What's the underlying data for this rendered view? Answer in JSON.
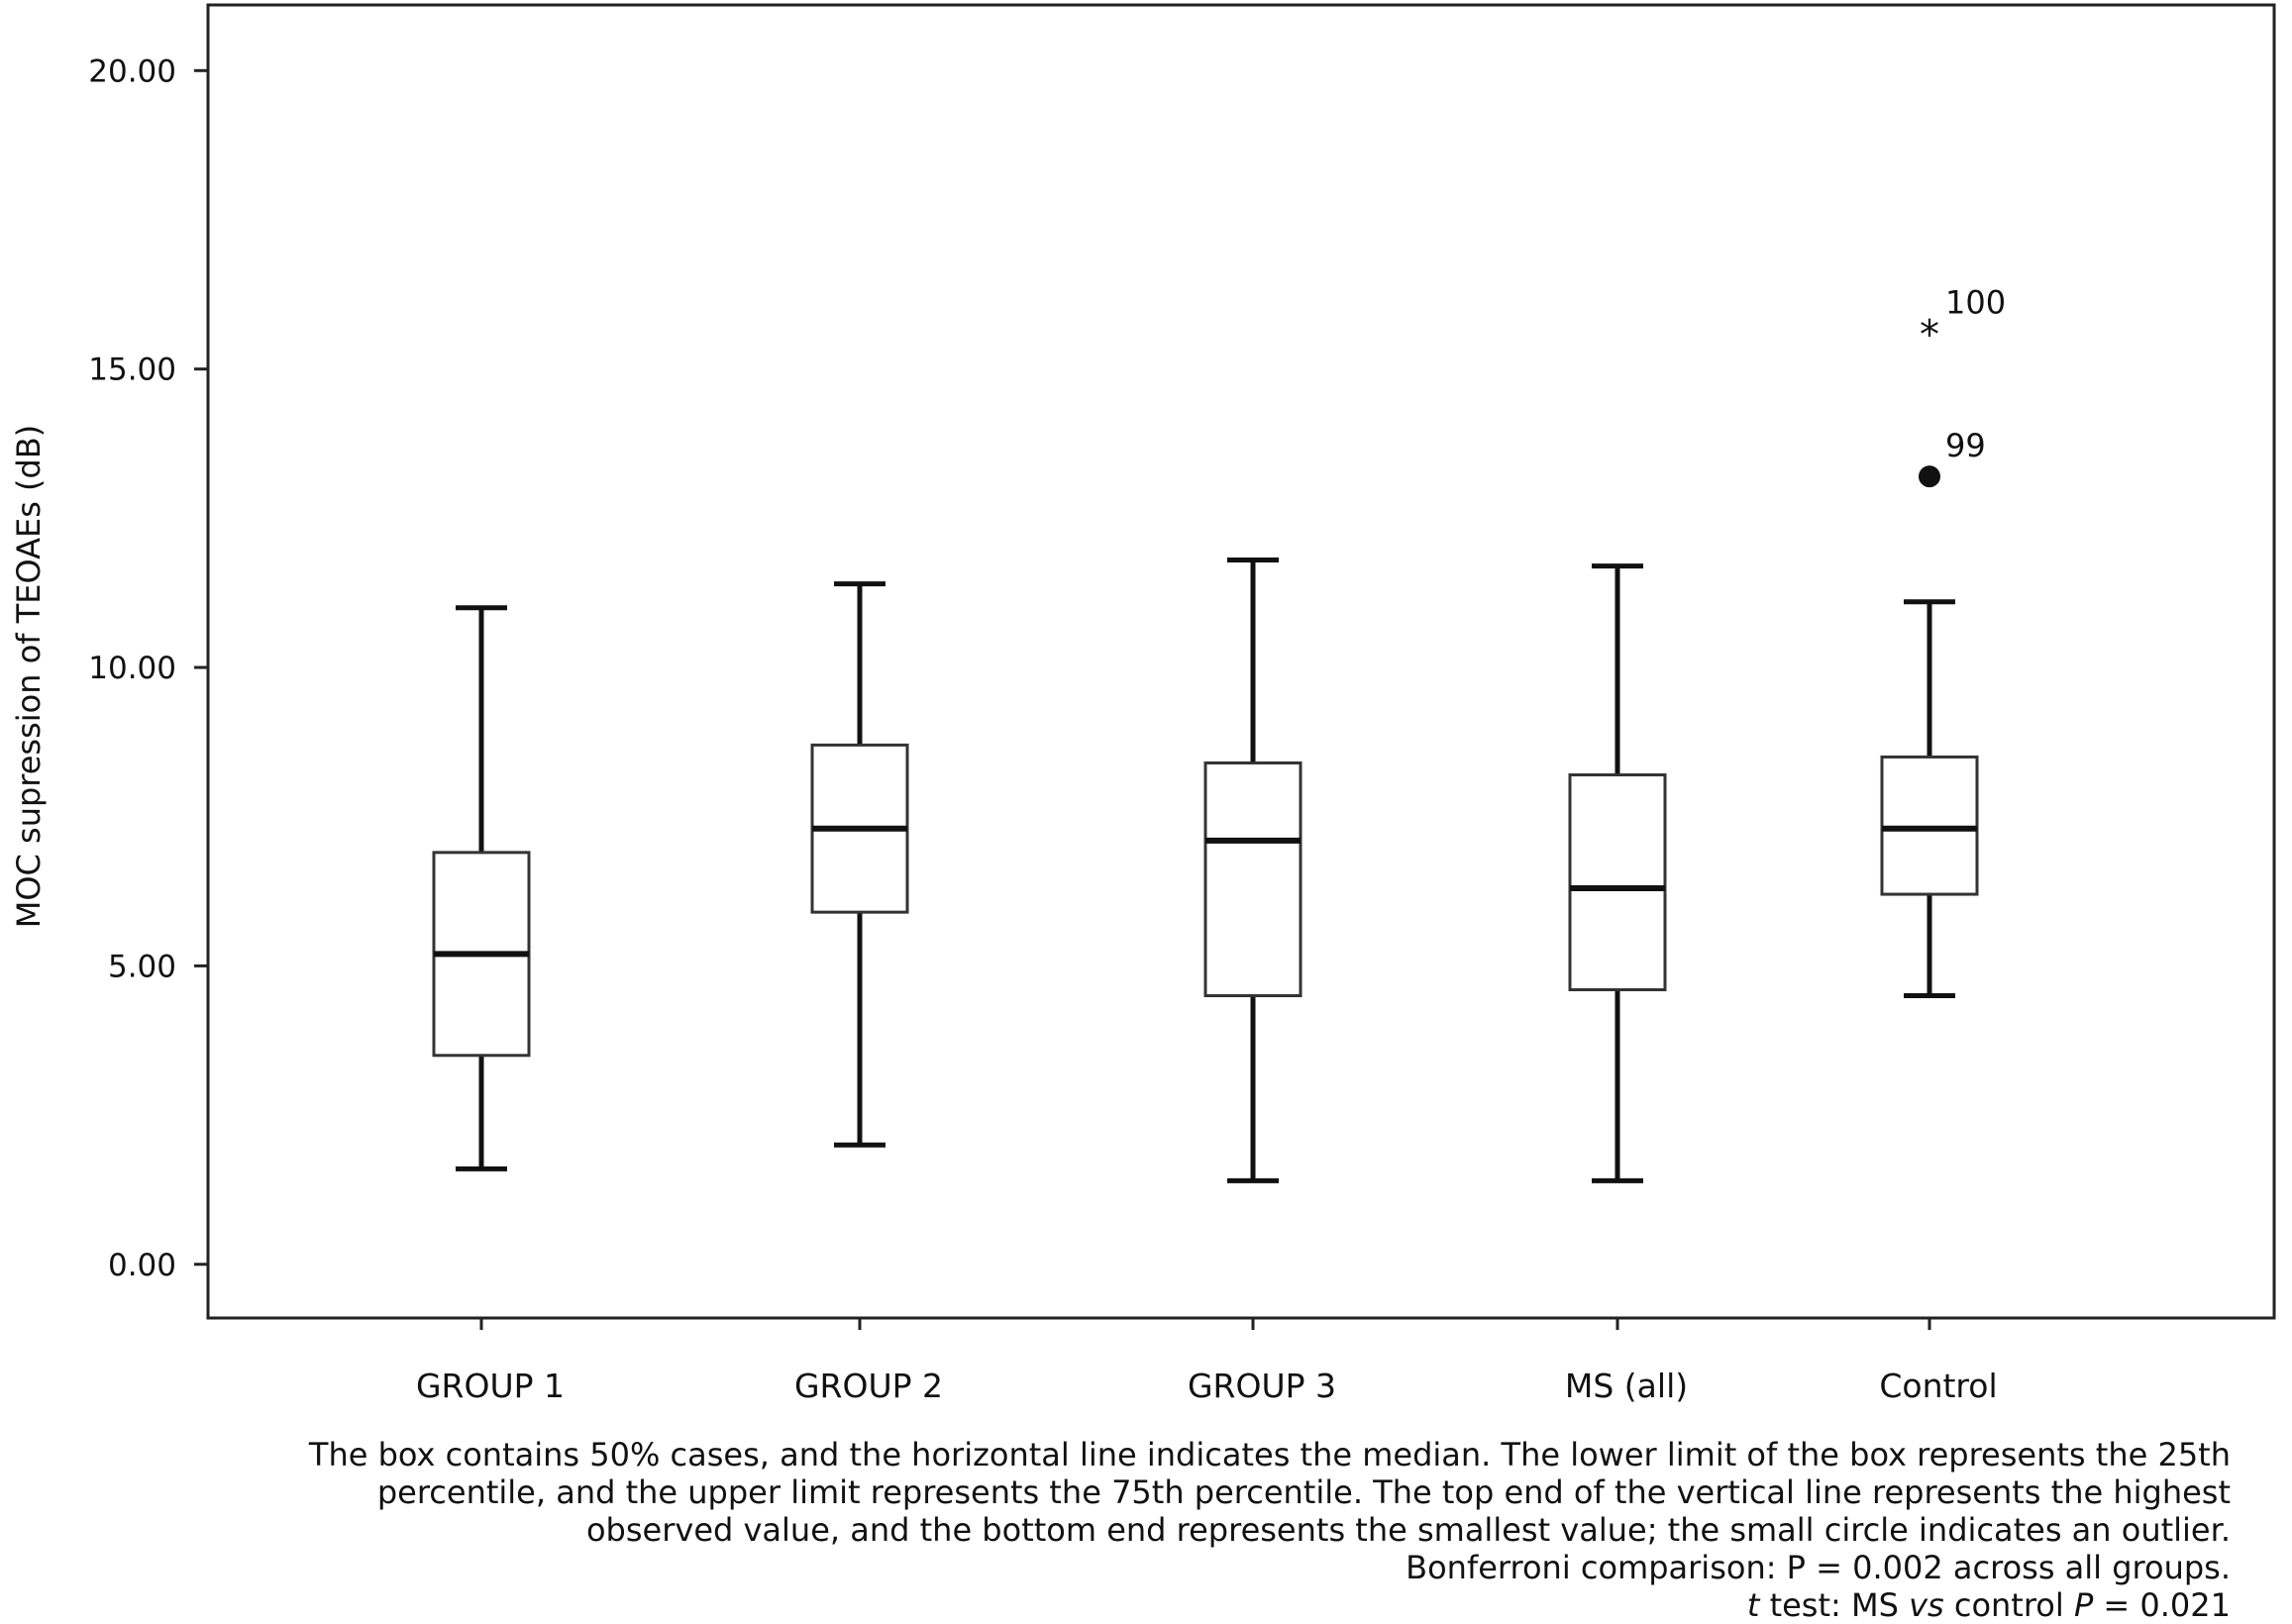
{
  "chart_data": {
    "type": "box",
    "ylabel": "MOC supression of TEOAEs (dB)",
    "ylim": [
      -0.9,
      21.1
    ],
    "yticks": [
      "0.00",
      "5.00",
      "10.00",
      "15.00",
      "20.00"
    ],
    "ytick_values": [
      0,
      5,
      10,
      15,
      20
    ],
    "categories": [
      "GROUP 1",
      "GROUP 2",
      "GROUP 3",
      "MS (all)",
      "Control"
    ],
    "boxes": [
      {
        "name": "GROUP 1",
        "min": 1.6,
        "q1": 3.5,
        "median": 5.2,
        "q3": 6.9,
        "max": 11.0
      },
      {
        "name": "GROUP 2",
        "min": 2.0,
        "q1": 5.9,
        "median": 7.3,
        "q3": 8.7,
        "max": 11.4
      },
      {
        "name": "GROUP 3",
        "min": 1.4,
        "q1": 4.5,
        "median": 7.1,
        "q3": 8.4,
        "max": 11.8
      },
      {
        "name": "MS (all)",
        "min": 1.4,
        "q1": 4.6,
        "median": 6.3,
        "q3": 8.2,
        "max": 11.7
      },
      {
        "name": "Control",
        "min": 4.5,
        "q1": 6.2,
        "median": 7.3,
        "q3": 8.5,
        "max": 11.1
      }
    ],
    "outliers": [
      {
        "category": "Control",
        "value": 15.6,
        "label": "100",
        "marker": "star"
      },
      {
        "category": "Control",
        "value": 13.2,
        "label": "99",
        "marker": "circle"
      }
    ]
  },
  "caption": {
    "line1": "The box contains 50% cases, and the horizontal line indicates the median. The lower limit of the box represents the 25th",
    "line2": "percentile, and the upper limit represents the 75th percentile. The top end of the vertical line represents the highest",
    "line3": "observed value, and the bottom end represents the smallest value; the small circle indicates an outlier.",
    "line4": "Bonferroni comparison: P = 0.002 across all groups.",
    "line5_t": "t",
    "line5_a": " test: MS ",
    "line5_vs": "vs",
    "line5_b": " control ",
    "line5_p": "P",
    "line5_c": " = 0.021"
  }
}
